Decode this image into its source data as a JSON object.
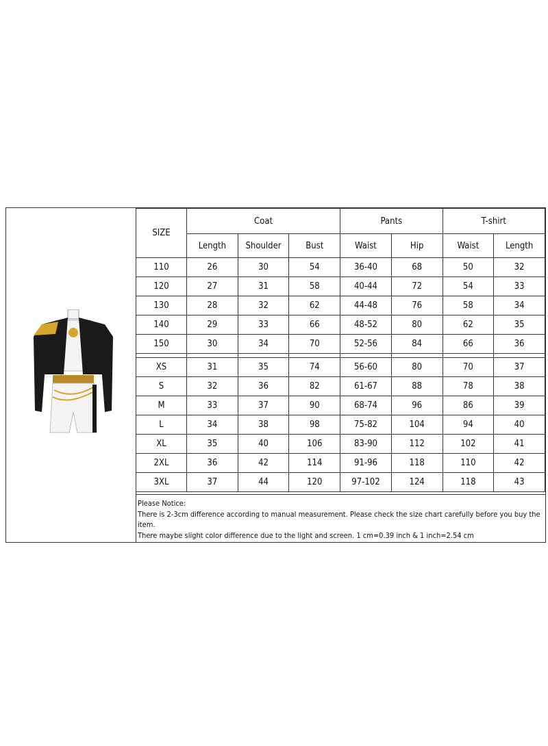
{
  "size_chart": {
    "size_header": "SIZE",
    "groups": [
      {
        "label": "Coat",
        "columns": [
          "Length",
          "Shoulder",
          "Bust"
        ]
      },
      {
        "label": "Pants",
        "columns": [
          "Waist",
          "Hip"
        ]
      },
      {
        "label": "T-shirt",
        "columns": [
          "Waist",
          "Length"
        ]
      }
    ],
    "kids_rows": [
      [
        "110",
        "26",
        "30",
        "54",
        "36-40",
        "68",
        "50",
        "32"
      ],
      [
        "120",
        "27",
        "31",
        "58",
        "40-44",
        "72",
        "54",
        "33"
      ],
      [
        "130",
        "28",
        "32",
        "62",
        "44-48",
        "76",
        "58",
        "34"
      ],
      [
        "140",
        "29",
        "33",
        "66",
        "48-52",
        "80",
        "62",
        "35"
      ],
      [
        "150",
        "30",
        "34",
        "70",
        "52-56",
        "84",
        "66",
        "36"
      ]
    ],
    "adult_rows": [
      [
        "XS",
        "31",
        "35",
        "74",
        "56-60",
        "80",
        "70",
        "37"
      ],
      [
        "S",
        "32",
        "36",
        "82",
        "61-67",
        "88",
        "78",
        "38"
      ],
      [
        "M",
        "33",
        "37",
        "90",
        "68-74",
        "96",
        "86",
        "39"
      ],
      [
        "L",
        "34",
        "38",
        "98",
        "75-82",
        "104",
        "94",
        "40"
      ],
      [
        "XL",
        "35",
        "40",
        "106",
        "83-90",
        "112",
        "102",
        "41"
      ],
      [
        "2XL",
        "36",
        "42",
        "114",
        "91-96",
        "118",
        "110",
        "42"
      ],
      [
        "3XL",
        "37",
        "44",
        "120",
        "97-102",
        "124",
        "118",
        "43"
      ]
    ]
  },
  "notice": {
    "title": "Please Notice:",
    "line1": "There is 2-3cm difference according to manual measurement. Please check the size chart carefully before you buy the item.",
    "line2": "There maybe slight color difference due to the light and screen. 1 cm=0.39 inch & 1 inch=2.54 cm"
  },
  "colors": {
    "jacket": "#1a1a1a",
    "gold": "#d4a62a",
    "white": "#f4f4f4"
  }
}
